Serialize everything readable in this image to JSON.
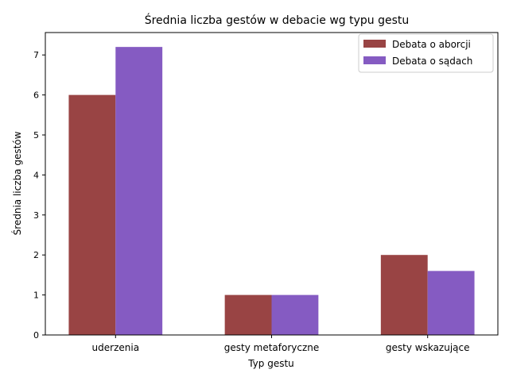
{
  "chart_data": {
    "type": "bar",
    "title": "Średnia liczba gestów w debacie wg typu gestu",
    "xlabel": "Typ gestu",
    "ylabel": "Średnia liczba gestów",
    "categories": [
      "uderzenia",
      "gesty metaforyczne",
      "gesty wskazujące"
    ],
    "series": [
      {
        "name": "Debata o aborcji",
        "values": [
          6.0,
          1.0,
          2.0
        ],
        "color": "#994444"
      },
      {
        "name": "Debata o sądach",
        "values": [
          7.2,
          1.0,
          1.6
        ],
        "color": "#855bc2"
      }
    ],
    "ylim": [
      0,
      7.56
    ],
    "yticks": [
      0,
      1,
      2,
      3,
      4,
      5,
      6,
      7
    ],
    "grid": false,
    "legend_position": "top-right"
  }
}
